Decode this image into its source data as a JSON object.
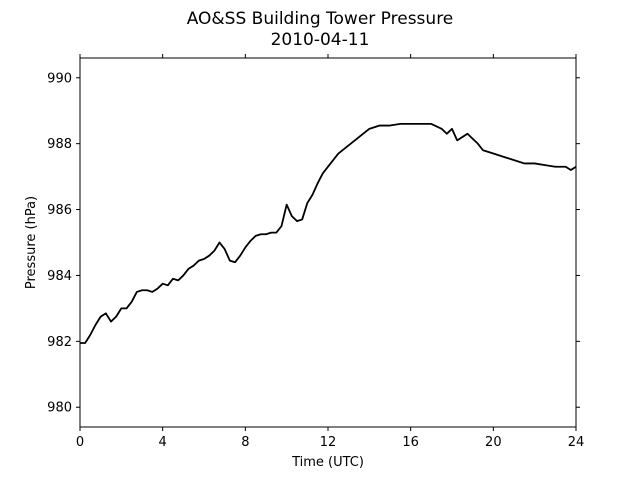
{
  "chart_data": {
    "type": "line",
    "title": "AO&SS Building Tower Pressure",
    "subtitle": "2010-04-11",
    "xlabel": "Time (UTC)",
    "ylabel": "Pressure (hPa)",
    "xlim": [
      0,
      24
    ],
    "ylim": [
      979.4,
      990.6
    ],
    "xticks": [
      0,
      4,
      8,
      12,
      16,
      20,
      24
    ],
    "yticks": [
      980,
      982,
      984,
      986,
      988,
      990
    ],
    "grid": false,
    "line_color": "#000000",
    "series": [
      {
        "x": [
          0,
          0.25,
          0.5,
          0.75,
          1.0,
          1.25,
          1.5,
          1.75,
          2.0,
          2.25,
          2.5,
          2.75,
          3.0,
          3.25,
          3.5,
          3.75,
          4.0,
          4.25,
          4.5,
          4.75,
          5.0,
          5.25,
          5.5,
          5.75,
          6.0,
          6.25,
          6.5,
          6.75,
          7.0,
          7.25,
          7.5,
          7.75,
          8.0,
          8.25,
          8.5,
          8.75,
          9.0,
          9.25,
          9.5,
          9.75,
          10.0,
          10.25,
          10.5,
          10.75,
          11.0,
          11.25,
          11.5,
          11.75,
          12.0,
          12.5,
          13.0,
          13.5,
          14.0,
          14.5,
          15.0,
          15.5,
          16.0,
          16.5,
          17.0,
          17.5,
          17.75,
          18.0,
          18.25,
          18.5,
          18.75,
          19.0,
          19.25,
          19.5,
          19.75,
          20.0,
          20.5,
          21.0,
          21.5,
          22.0,
          22.5,
          23.0,
          23.5,
          23.75,
          24.0
        ],
        "y": [
          981.95,
          981.95,
          982.2,
          982.5,
          982.75,
          982.85,
          982.6,
          982.75,
          983.0,
          983.0,
          983.2,
          983.5,
          983.55,
          983.55,
          983.5,
          983.6,
          983.75,
          983.7,
          983.9,
          983.85,
          984.0,
          984.2,
          984.3,
          984.45,
          984.5,
          984.6,
          984.75,
          985.0,
          984.8,
          984.45,
          984.4,
          984.6,
          984.85,
          985.05,
          985.2,
          985.25,
          985.25,
          985.3,
          985.3,
          985.5,
          986.15,
          985.8,
          985.65,
          985.7,
          986.2,
          986.45,
          986.8,
          987.1,
          987.3,
          987.7,
          987.95,
          988.2,
          988.45,
          988.55,
          988.55,
          988.6,
          988.6,
          988.6,
          988.6,
          988.45,
          988.3,
          988.45,
          988.1,
          988.2,
          988.3,
          988.15,
          988.0,
          987.8,
          987.75,
          987.7,
          987.6,
          987.5,
          987.4,
          987.4,
          987.35,
          987.3,
          987.3,
          987.2,
          987.3
        ]
      }
    ]
  }
}
